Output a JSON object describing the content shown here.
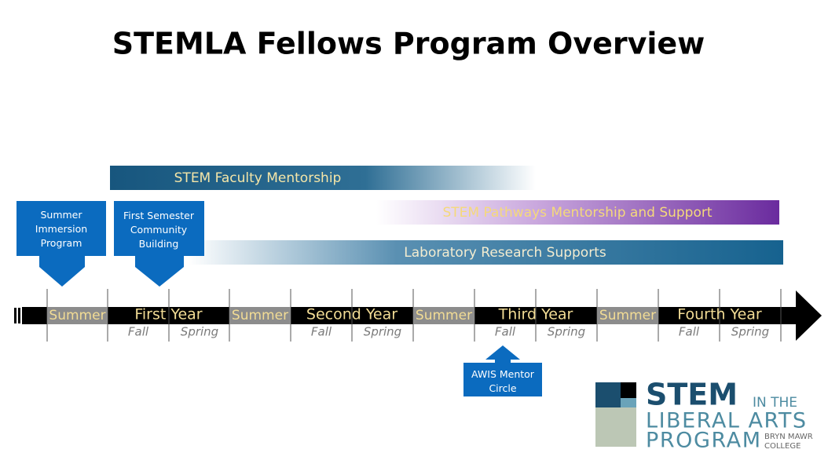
{
  "title": "STEMLA Fellows Program Overview",
  "bars": [
    "STEM Faculty Mentorship",
    "STEM  Pathways Mentorship and Support",
    "Laboratory Research Supports"
  ],
  "callouts": [
    "Summer Immersion Program",
    "First Semester Community Building",
    "AWIS Mentor Circle"
  ],
  "timeline": [
    "Summer",
    "First Year",
    "Summer",
    "Second Year",
    "Summer",
    "Third Year",
    "Summer",
    "Fourth Year"
  ],
  "semesters": [
    [
      "Fall",
      "Spring"
    ],
    [
      "Fall",
      "Spring"
    ],
    [
      "Fall",
      "Spring"
    ],
    [
      "Fall",
      "Spring"
    ]
  ],
  "logo": {
    "stem": "STEM",
    "in_the": "IN THE",
    "liberal_arts": "LIBERAL ARTS",
    "program": "PROGRAM",
    "college_1": "BRYN MAWR",
    "college_2": "COLLEGE"
  }
}
